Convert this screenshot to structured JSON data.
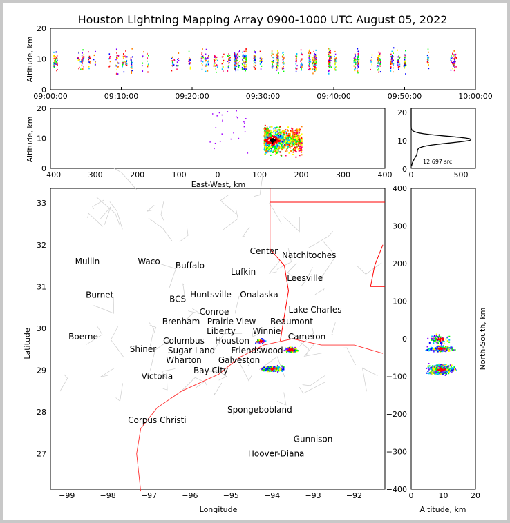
{
  "chart_data": [
    {
      "type": "scatter",
      "name": "time-altitude",
      "title": "Houston Lightning Mapping Array 0900-1000 UTC August 05, 2022",
      "ylabel": "Altitude, km",
      "ylim": [
        0,
        20
      ],
      "yticks": [
        "0",
        "10",
        "20"
      ],
      "xticks": [
        "09:00:00",
        "09:10:00",
        "09:20:00",
        "09:30:00",
        "09:40:00",
        "09:50:00",
        "10:00:00"
      ],
      "xlim_minutes": [
        0,
        60
      ],
      "note": "sources mostly between 5 and 14 km throughout hour, densest 09:25-09:45"
    },
    {
      "type": "scatter",
      "name": "east-west-altitude",
      "xlabel": "East-West, km",
      "ylabel": "Altitude, km",
      "xlim": [
        -400,
        400
      ],
      "ylim": [
        0,
        20
      ],
      "xticks": [
        "-400",
        "−300",
        "−200",
        "−100",
        "0",
        "100",
        "200",
        "300",
        "400"
      ],
      "yticks": [
        "0",
        "10",
        "20"
      ],
      "cluster": {
        "x_range": [
          105,
          200
        ],
        "peak_x": 130,
        "peak_alt": 9.5
      }
    },
    {
      "type": "line",
      "name": "altitude-histogram",
      "xlim": [
        0,
        640
      ],
      "ylim": [
        0,
        21
      ],
      "xticks": [
        "0",
        "500"
      ],
      "yticks": [
        "0",
        "10",
        "20"
      ],
      "annotation": "12,697 src",
      "peak": {
        "count": 600,
        "altitude": 9.5
      }
    },
    {
      "type": "scatter",
      "name": "plan-view-map",
      "xlabel": "Longitude",
      "ylabel": "Latitude",
      "xticks": [
        "−99",
        "−98",
        "−97",
        "−96",
        "−95",
        "−94",
        "−93",
        "−92"
      ],
      "yticks": [
        "27",
        "28",
        "29",
        "30",
        "31",
        "32",
        "33"
      ],
      "xlim": [
        -99.4,
        -91.25
      ],
      "ylim": [
        26.15,
        33.35
      ],
      "clusters": [
        {
          "lon": -94.0,
          "lat": 29.05
        },
        {
          "lon": -93.55,
          "lat": 29.5
        },
        {
          "lon": -94.3,
          "lat": 29.7
        }
      ],
      "cities": [
        {
          "name": "Mullin",
          "lon": -98.5,
          "lat": 31.6,
          "color": "#ff8c40"
        },
        {
          "name": "Waco",
          "lon": -97.0,
          "lat": 31.6,
          "color": "#000"
        },
        {
          "name": "Buffalo",
          "lon": -96.0,
          "lat": 31.5,
          "color": "#000"
        },
        {
          "name": "Lufkin",
          "lon": -94.7,
          "lat": 31.35,
          "color": "#000"
        },
        {
          "name": "Center",
          "lon": -94.2,
          "lat": 31.85,
          "color": "#000"
        },
        {
          "name": "Natchitoches",
          "lon": -93.1,
          "lat": 31.75,
          "color": "#000"
        },
        {
          "name": "Leesville",
          "lon": -93.2,
          "lat": 31.2,
          "color": "#000"
        },
        {
          "name": "Burnet",
          "lon": -98.2,
          "lat": 30.8,
          "color": "#000"
        },
        {
          "name": "BCS",
          "lon": -96.3,
          "lat": 30.7,
          "color": "#8b0000"
        },
        {
          "name": "Huntsville",
          "lon": -95.5,
          "lat": 30.8,
          "color": "#000"
        },
        {
          "name": "Onalaska",
          "lon": -95.1,
          "lat": 30.85,
          "color": "#000"
        },
        {
          "name": "Conroe",
          "lon": -95.4,
          "lat": 30.35,
          "color": "#000"
        },
        {
          "name": "Brenham",
          "lon": -95.9,
          "lat": 30.2,
          "color": "#000"
        },
        {
          "name": "Prairie View",
          "lon": -95.5,
          "lat": 30.15,
          "color": "#000"
        },
        {
          "name": "Liberty",
          "lon": -94.8,
          "lat": 30.1,
          "color": "#000"
        },
        {
          "name": "Beaumont",
          "lon": -94.0,
          "lat": 30.1,
          "color": "#000"
        },
        {
          "name": "Lake Charles",
          "lon": -93.0,
          "lat": 30.25,
          "color": "#000"
        },
        {
          "name": "Boerne",
          "lon": -98.6,
          "lat": 29.8,
          "color": "#000"
        },
        {
          "name": "Columbus",
          "lon": -95.9,
          "lat": 29.75,
          "color": "#000"
        },
        {
          "name": "Houston",
          "lon": -95.0,
          "lat": 29.8,
          "color": "#ff8c00"
        },
        {
          "name": "Winnie",
          "lon": -94.35,
          "lat": 29.85,
          "color": "#000"
        },
        {
          "name": "Cameron",
          "lon": -93.2,
          "lat": 29.8,
          "color": "#000"
        },
        {
          "name": "Sugar Land",
          "lon": -95.3,
          "lat": 29.6,
          "color": "#000"
        },
        {
          "name": "Friendswood",
          "lon": -95.0,
          "lat": 29.55,
          "color": "#000"
        },
        {
          "name": "Shiner",
          "lon": -97.1,
          "lat": 29.5,
          "color": "#000"
        },
        {
          "name": "Wharton",
          "lon": -95.7,
          "lat": 29.35,
          "color": "#000"
        },
        {
          "name": "Galveston",
          "lon": -94.8,
          "lat": 29.35,
          "color": "#000"
        },
        {
          "name": "Bay City",
          "lon": -95.5,
          "lat": 29.0,
          "color": "#000"
        },
        {
          "name": "Victoria",
          "lon": -96.8,
          "lat": 28.85,
          "color": "#000"
        },
        {
          "name": "Corpus Christi",
          "lon": -96.8,
          "lat": 27.8,
          "color": "#000"
        },
        {
          "name": "Spongebobland",
          "lon": -94.3,
          "lat": 28.05,
          "color": "#0000ff"
        },
        {
          "name": "Gunnison",
          "lon": -93.0,
          "lat": 27.35,
          "color": "#0000ff"
        },
        {
          "name": "Hoover-Diana",
          "lon": -93.9,
          "lat": 27.0,
          "color": "#0000ff"
        }
      ]
    },
    {
      "type": "scatter",
      "name": "north-south-altitude",
      "xlabel": "Altitude, km",
      "ylabel": "North-South, km",
      "xlim": [
        0,
        20
      ],
      "ylim": [
        -400,
        400
      ],
      "xticks": [
        "0",
        "10",
        "20"
      ],
      "yticks": [
        "−400",
        "−300",
        "−200",
        "−100",
        "0",
        "100",
        "200",
        "300",
        "400"
      ]
    }
  ]
}
